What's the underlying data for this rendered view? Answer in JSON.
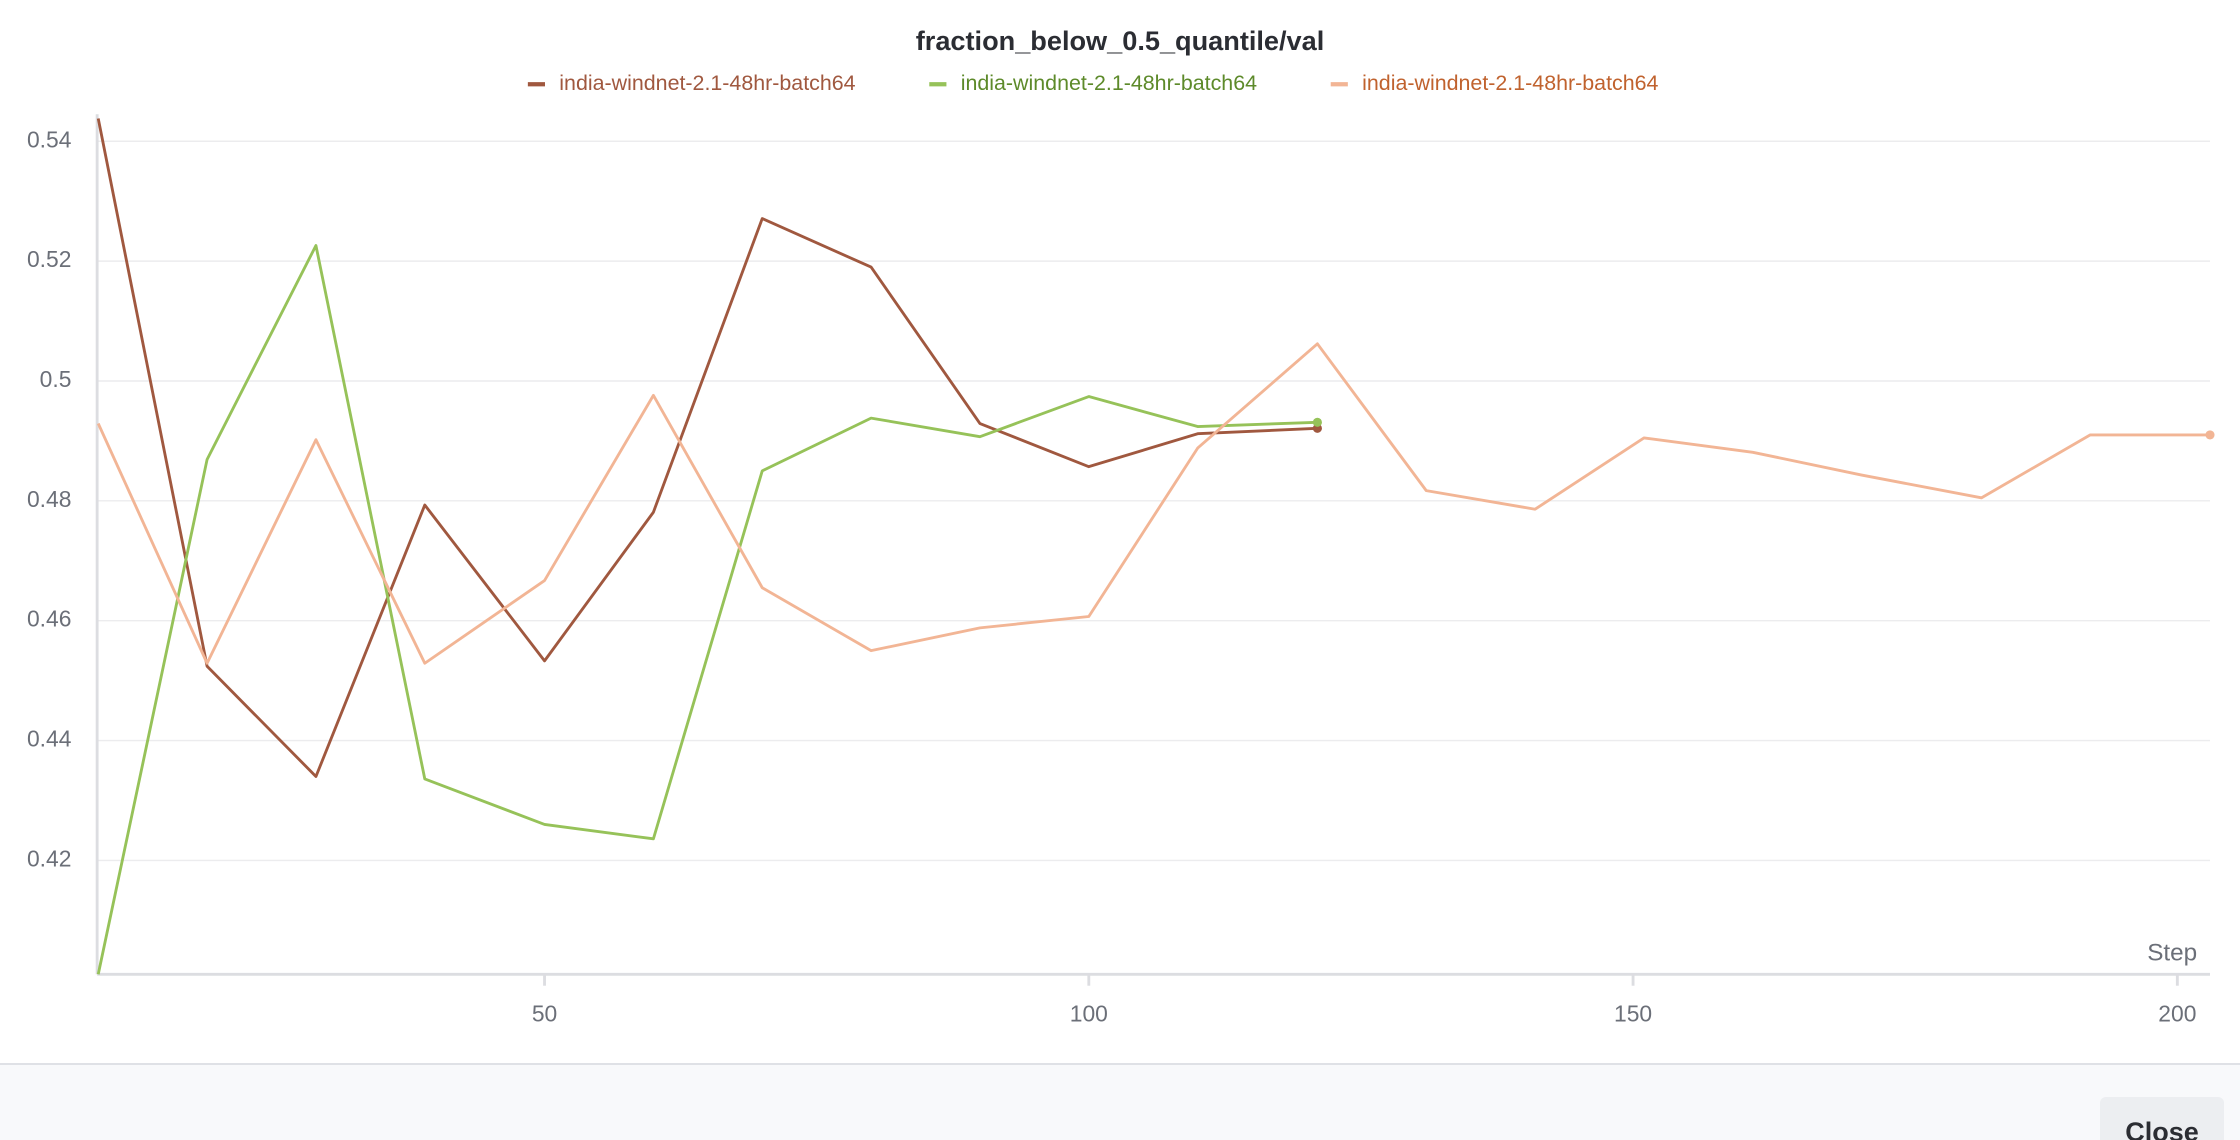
{
  "chart_data": {
    "type": "line",
    "title": "fraction_below_0.5_quantile/val",
    "x_label": "Step",
    "x": [
      9,
      19,
      29,
      39,
      50,
      60,
      70,
      80,
      90,
      100,
      110,
      121,
      131,
      141,
      151,
      161,
      171,
      182,
      192,
      203
    ],
    "series": [
      {
        "name": "india-windnet-2.1-48hr-batch64",
        "color": "#a0583f",
        "values": [
          0.5438,
          0.4524,
          0.434,
          0.4793,
          0.4533,
          0.4781,
          0.5271,
          0.519,
          0.4929,
          0.4857,
          0.4912,
          0.4921,
          null,
          null,
          null,
          null,
          null,
          null,
          null,
          null
        ]
      },
      {
        "name": "india-windnet-2.1-48hr-batch64",
        "color": "#96c259",
        "values": [
          0.401,
          0.4869,
          0.5226,
          0.4336,
          0.426,
          0.4236,
          0.485,
          0.4938,
          0.4907,
          0.4974,
          0.4924,
          0.4931,
          null,
          null,
          null,
          null,
          null,
          null,
          null,
          null
        ]
      },
      {
        "name": "india-windnet-2.1-48hr-batch64",
        "color": "#f2b595",
        "values": [
          0.4929,
          0.4529,
          0.4902,
          0.4529,
          0.4667,
          0.4976,
          0.4655,
          0.455,
          0.4588,
          0.4607,
          0.4888,
          0.5062,
          0.4817,
          0.4786,
          0.4905,
          0.4881,
          0.4843,
          0.4805,
          0.491,
          0.491
        ]
      }
    ],
    "xlim": [
      8.9,
      203
    ],
    "xticks": [
      50,
      100,
      150,
      200
    ],
    "ylim": [
      0.401,
      0.5445
    ],
    "yticks": [
      0.42,
      0.44,
      0.46,
      0.48,
      0.5,
      0.52,
      0.54
    ],
    "grid": true,
    "legend": "top"
  },
  "footer": {
    "button": "Close"
  }
}
